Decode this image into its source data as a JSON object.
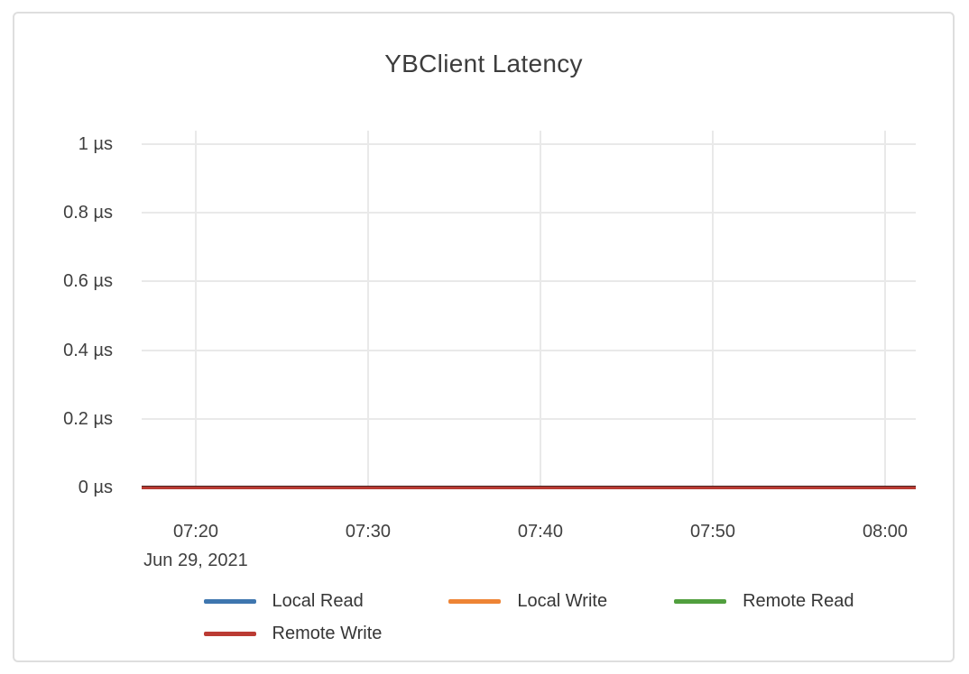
{
  "chart_data": {
    "type": "line",
    "title": "YBClient Latency",
    "x": [
      "07:20",
      "07:30",
      "07:40",
      "07:50",
      "08:00"
    ],
    "x_date_label": "Jun 29, 2021",
    "y_unit": "µs",
    "ylim": [
      0,
      1
    ],
    "y_ticks": [
      {
        "value": 1,
        "label": "1 µs"
      },
      {
        "value": 0.8,
        "label": "0.8 µs"
      },
      {
        "value": 0.6,
        "label": "0.6 µs"
      },
      {
        "value": 0.4,
        "label": "0.4 µs"
      },
      {
        "value": 0.2,
        "label": "0.2 µs"
      },
      {
        "value": 0,
        "label": "0 µs"
      }
    ],
    "grid": true,
    "legend_position": "bottom",
    "series": [
      {
        "name": "Local Read",
        "color": "#3e76af",
        "values": [
          0,
          0,
          0,
          0,
          0
        ]
      },
      {
        "name": "Local Write",
        "color": "#ee8435",
        "values": [
          0,
          0,
          0,
          0,
          0
        ]
      },
      {
        "name": "Remote Read",
        "color": "#519f3e",
        "values": [
          0,
          0,
          0,
          0,
          0
        ]
      },
      {
        "name": "Remote Write",
        "color": "#bb3b33",
        "values": [
          0,
          0,
          0,
          0,
          0
        ]
      }
    ],
    "colors": {
      "grid": "#e9e9e9",
      "axis_text": "#3f3f3f",
      "title_text": "#3d3d3d",
      "card_border": "#dedede",
      "zero_line": "#b83b33"
    }
  }
}
